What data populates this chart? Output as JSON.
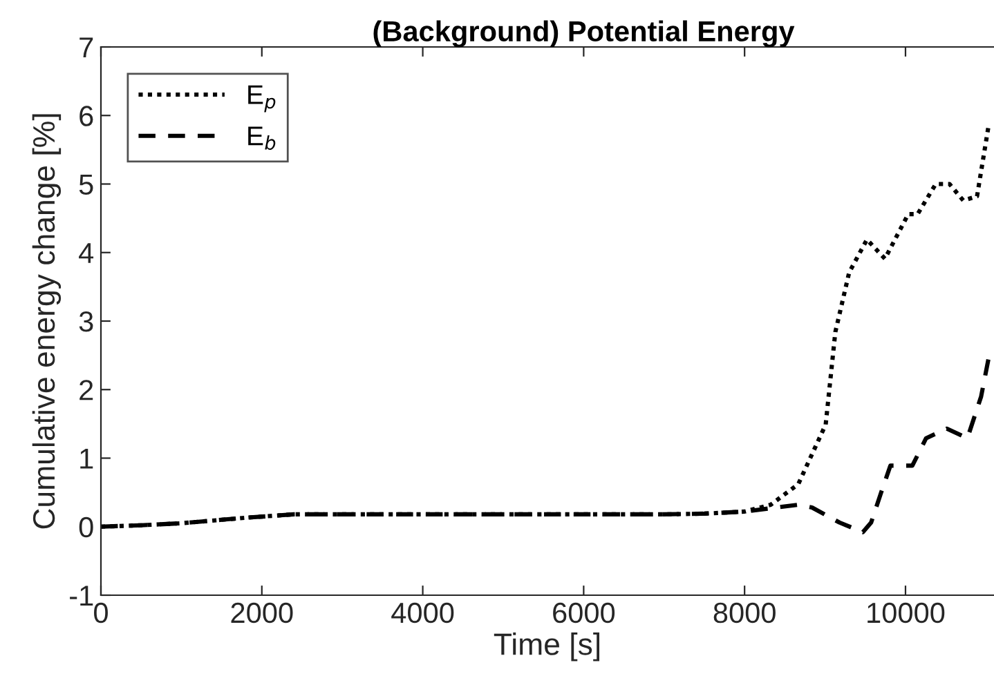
{
  "chart_data": {
    "type": "line",
    "title": "(Background) Potential Energy",
    "xlabel": "Time [s]",
    "ylabel": "Cumulative energy change [%]",
    "xlim": [
      0,
      11100
    ],
    "xticks": [
      0,
      2000,
      4000,
      6000,
      8000,
      10000
    ],
    "ylim": [
      -1,
      7
    ],
    "yticks": [
      -1,
      0,
      1,
      2,
      3,
      4,
      5,
      6,
      7
    ],
    "grid": false,
    "legend": "top left",
    "marker": "none",
    "series": [
      {
        "name": "E$_{p}$",
        "color": "#000000",
        "line_style": "dotted",
        "x": [
          0,
          500,
          1000,
          1500,
          1800,
          2400,
          3000,
          5000,
          7000,
          7500,
          8000,
          8325,
          8667,
          9008,
          9128,
          9300,
          9521,
          9744,
          10034,
          10150,
          10376,
          10547,
          10718,
          10889,
          11030
        ],
        "values": [
          0,
          0.02,
          0.05,
          0.1,
          0.13,
          0.18,
          0.18,
          0.18,
          0.18,
          0.19,
          0.22,
          0.32,
          0.62,
          1.49,
          2.84,
          3.71,
          4.19,
          3.91,
          4.56,
          4.56,
          5.0,
          5.0,
          4.76,
          4.82,
          5.83
        ]
      },
      {
        "name": "E$_{b}$",
        "color": "#000000",
        "line_style": "dashed",
        "x": [
          0,
          500,
          1000,
          1500,
          1800,
          2400,
          3000,
          5000,
          7000,
          7500,
          8000,
          8400,
          8667,
          8838,
          9180,
          9470,
          9573,
          9692,
          9812,
          10085,
          10256,
          10513,
          10769,
          10940,
          11030
        ],
        "values": [
          0,
          0.02,
          0.05,
          0.1,
          0.13,
          0.18,
          0.18,
          0.18,
          0.18,
          0.19,
          0.22,
          0.28,
          0.32,
          0.28,
          0.06,
          -0.08,
          0.06,
          0.48,
          0.89,
          0.89,
          1.29,
          1.43,
          1.29,
          1.9,
          2.44
        ]
      }
    ]
  }
}
